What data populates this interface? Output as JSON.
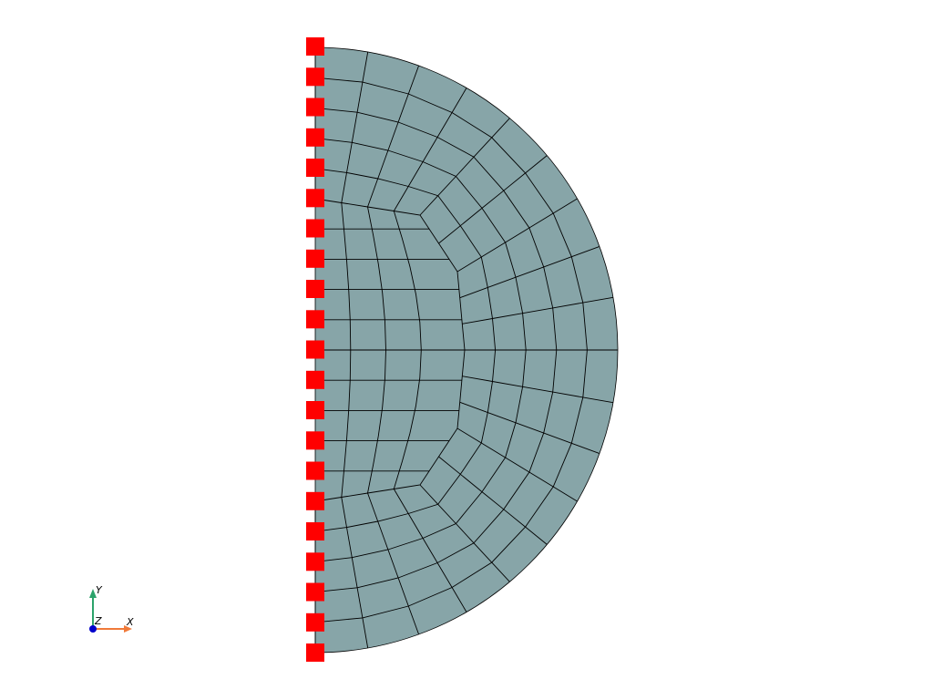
{
  "scene": {
    "background": "#ffffff",
    "mesh_fill": "#87a5a8",
    "mesh_edge": "#000000",
    "constraint_color": "#ff0000",
    "constraint_count": 21
  },
  "axes_triad": {
    "x_label": "X",
    "y_label": "Y",
    "z_label": "Z",
    "x_color": "#f07a3a",
    "y_color": "#2ca36b",
    "z_color": "#0000cc"
  }
}
